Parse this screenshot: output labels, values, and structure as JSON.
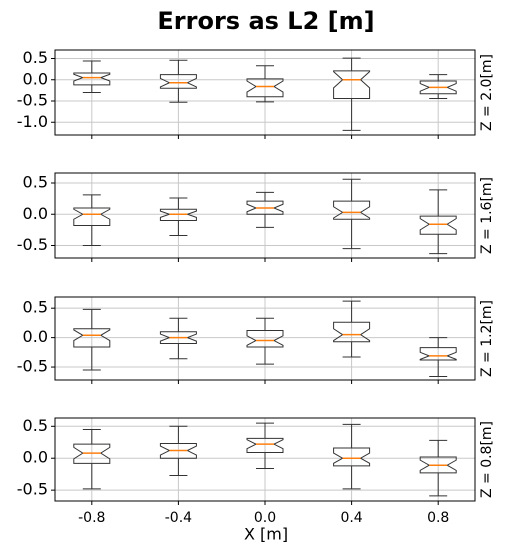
{
  "title": "Errors as L2 [m]",
  "xlabel": "X [m]",
  "chart_data": [
    {
      "type": "box",
      "side_label": "Z = 2.0[m]",
      "x": [
        -0.8,
        -0.4,
        0.4,
        0.8,
        0.0
      ],
      "xlim": [
        -0.97,
        0.97
      ],
      "xticks": [
        -0.8,
        -0.4,
        {
          "value": 0,
          "label": "0.0"
        },
        0.4,
        0.8
      ],
      "ylim": [
        -1.3,
        0.7
      ],
      "yticks": [
        0.5,
        {
          "value": 0,
          "label": "0.0"
        },
        -0.5,
        {
          "value": -1,
          "label": "-1.0"
        }
      ],
      "grid": true,
      "box_color": "#333333",
      "median_color": "#ff7f0e",
      "whislo": [
        -0.3,
        -0.53,
        -1.19,
        -0.44,
        -0.52
      ],
      "q1": [
        -0.12,
        -0.2,
        -0.44,
        -0.33,
        -0.4
      ],
      "cilo": [
        -0.03,
        -0.17,
        -0.19,
        -0.27,
        -0.29
      ],
      "med": [
        0.05,
        -0.07,
        0.0,
        -0.18,
        -0.16
      ],
      "cihi": [
        0.13,
        0.03,
        0.19,
        -0.09,
        -0.03
      ],
      "q3": [
        0.16,
        0.12,
        0.21,
        -0.03,
        0.02
      ],
      "whishi": [
        0.44,
        0.46,
        0.51,
        0.12,
        0.33
      ]
    },
    {
      "type": "box",
      "side_label": "Z = 1.6[m]",
      "x": [
        -0.8,
        -0.4,
        0.4,
        0.8,
        0.0
      ],
      "xlim": [
        -0.97,
        0.97
      ],
      "xticks": [
        -0.8,
        -0.4,
        {
          "value": 0,
          "label": "0.0"
        },
        0.4,
        0.8
      ],
      "ylim": [
        -0.7,
        0.66
      ],
      "yticks": [
        0.5,
        {
          "value": 0,
          "label": "0.0"
        },
        -0.5
      ],
      "grid": true,
      "box_color": "#333333",
      "median_color": "#ff7f0e",
      "whislo": [
        -0.5,
        -0.34,
        -0.55,
        -0.63,
        -0.21
      ],
      "q1": [
        -0.18,
        -0.1,
        -0.08,
        -0.32,
        0.0
      ],
      "cilo": [
        -0.08,
        -0.05,
        -0.06,
        -0.25,
        0.04
      ],
      "med": [
        0.0,
        0.0,
        0.03,
        -0.16,
        0.1
      ],
      "cihi": [
        0.08,
        0.05,
        0.12,
        -0.07,
        0.16
      ],
      "q3": [
        0.1,
        0.08,
        0.21,
        -0.03,
        0.21
      ],
      "whishi": [
        0.31,
        0.26,
        0.56,
        0.39,
        0.35
      ]
    },
    {
      "type": "box",
      "side_label": "Z = 1.2[m]",
      "x": [
        -0.8,
        -0.4,
        0.4,
        0.8,
        0.0
      ],
      "xlim": [
        -0.97,
        0.97
      ],
      "xticks": [
        -0.8,
        -0.4,
        {
          "value": 0,
          "label": "0.0"
        },
        0.4,
        0.8
      ],
      "ylim": [
        -0.72,
        0.69
      ],
      "yticks": [
        0.5,
        {
          "value": 0,
          "label": "0.0"
        },
        -0.5
      ],
      "grid": true,
      "box_color": "#333333",
      "median_color": "#ff7f0e",
      "whislo": [
        -0.55,
        -0.36,
        -0.33,
        -0.66,
        -0.45
      ],
      "q1": [
        -0.16,
        -0.1,
        -0.07,
        -0.38,
        -0.16
      ],
      "cilo": [
        -0.05,
        -0.06,
        -0.05,
        -0.37,
        -0.13
      ],
      "med": [
        0.04,
        0.0,
        0.05,
        -0.31,
        -0.05
      ],
      "cihi": [
        0.13,
        0.06,
        0.15,
        -0.25,
        0.03
      ],
      "q3": [
        0.15,
        0.1,
        0.26,
        -0.17,
        0.12
      ],
      "whishi": [
        0.48,
        0.33,
        0.62,
        0.0,
        0.33
      ]
    },
    {
      "type": "box",
      "side_label": "Z = 0.8[m]",
      "x": [
        -0.8,
        -0.4,
        0.4,
        0.8,
        0.0
      ],
      "xlim": [
        -0.97,
        0.97
      ],
      "xticks": [
        -0.8,
        -0.4,
        {
          "value": 0,
          "label": "0.0"
        },
        0.4,
        0.8
      ],
      "ylim": [
        -0.67,
        0.63
      ],
      "yticks": [
        0.5,
        {
          "value": 0,
          "label": "0.0"
        },
        -0.5
      ],
      "grid": true,
      "box_color": "#333333",
      "median_color": "#ff7f0e",
      "whislo": [
        -0.48,
        -0.27,
        -0.48,
        -0.59,
        -0.16
      ],
      "q1": [
        -0.08,
        0.0,
        -0.12,
        -0.23,
        0.09
      ],
      "cilo": [
        -0.01,
        0.05,
        -0.08,
        -0.19,
        0.15
      ],
      "med": [
        0.08,
        0.12,
        0.0,
        -0.11,
        0.22
      ],
      "cihi": [
        0.17,
        0.19,
        0.08,
        -0.03,
        0.29
      ],
      "q3": [
        0.22,
        0.23,
        0.16,
        0.02,
        0.31
      ],
      "whishi": [
        0.45,
        0.5,
        0.53,
        0.28,
        0.55
      ]
    }
  ]
}
